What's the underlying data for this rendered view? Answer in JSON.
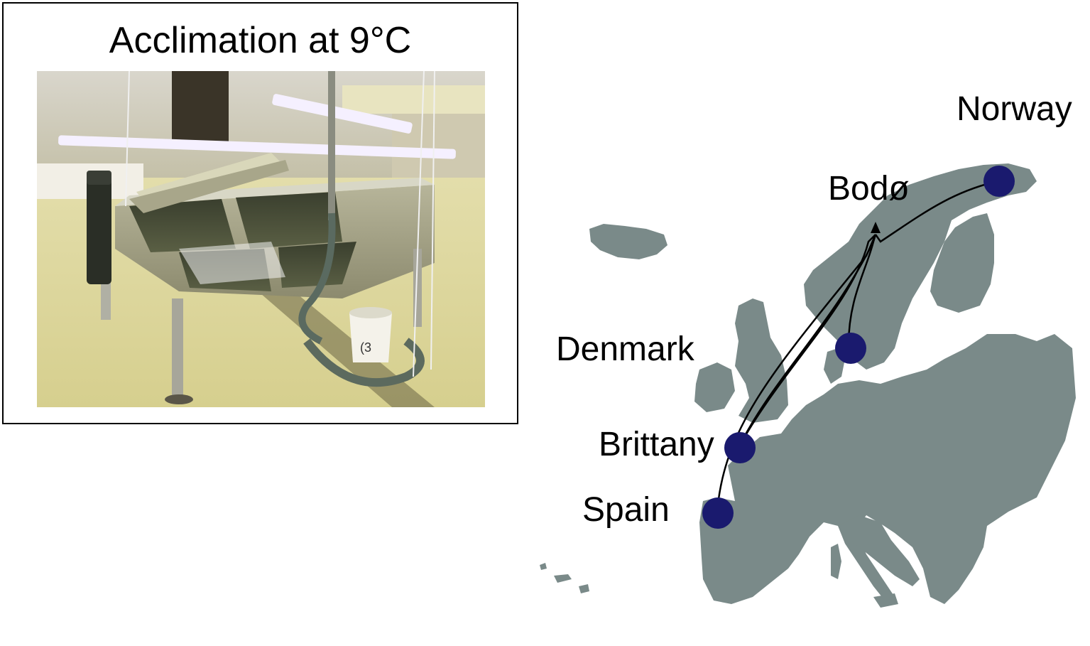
{
  "photo_panel": {
    "title": "Acclimation at 9°C",
    "image_description_icon": "aquarium-tanks-photo"
  },
  "map": {
    "land_color": "#7a8a89",
    "site_color": "#1a1a6e",
    "route_color": "#000000",
    "sites": [
      {
        "id": "spain",
        "label": "Spain"
      },
      {
        "id": "brittany",
        "label": "Brittany"
      },
      {
        "id": "denmark",
        "label": "Denmark"
      },
      {
        "id": "norway",
        "label": "Norway"
      }
    ],
    "destination": {
      "id": "bodo",
      "label": "Bodø"
    }
  }
}
